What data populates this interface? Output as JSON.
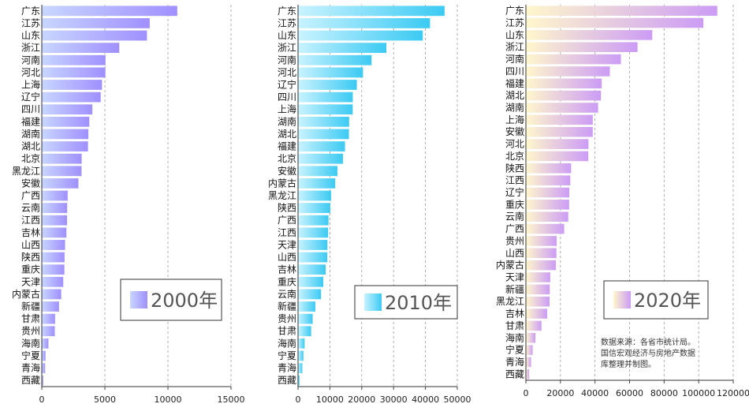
{
  "chart_data": [
    {
      "type": "bar",
      "orientation": "horizontal",
      "legend": "2000年",
      "legend_position": "bottom-right",
      "xlim": [
        0,
        15000
      ],
      "xticks": [
        "0",
        "5000",
        "10000",
        "15000"
      ],
      "grid": "vertical dashed",
      "colors": {
        "start": "#c8d6ff",
        "end": "#a090ff"
      },
      "categories": [
        "广东",
        "江苏",
        "山东",
        "浙江",
        "河南",
        "河北",
        "上海",
        "辽宁",
        "四川",
        "福建",
        "湖南",
        "湖北",
        "北京",
        "黑龙江",
        "安徽",
        "广西",
        "云南",
        "江西",
        "吉林",
        "山西",
        "陕西",
        "重庆",
        "天津",
        "内蒙古",
        "新疆",
        "甘肃",
        "贵州",
        "海南",
        "宁夏",
        "青海",
        "西藏"
      ],
      "values": [
        10741,
        8554,
        8337,
        6141,
        5053,
        5044,
        4771,
        4669,
        4010,
        3765,
        3692,
        3662,
        3162,
        3151,
        2902,
        2050,
        2011,
        2003,
        1951,
        1846,
        1804,
        1791,
        1702,
        1539,
        1364,
        1053,
        1030,
        526,
        295,
        264,
        117
      ]
    },
    {
      "type": "bar",
      "orientation": "horizontal",
      "legend": "2010年",
      "legend_position": "bottom-right",
      "xlim": [
        0,
        50000
      ],
      "xticks": [
        "0",
        "10000",
        "20000",
        "30000",
        "40000",
        "50000"
      ],
      "grid": "vertical dashed",
      "colors": {
        "start": "#c9f3ff",
        "end": "#3ccaf3"
      },
      "categories": [
        "广东",
        "江苏",
        "山东",
        "浙江",
        "河南",
        "河北",
        "辽宁",
        "四川",
        "上海",
        "湖南",
        "湖北",
        "福建",
        "北京",
        "安徽",
        "内蒙古",
        "黑龙江",
        "陕西",
        "广西",
        "江西",
        "天津",
        "山西",
        "吉林",
        "重庆",
        "云南",
        "新疆",
        "贵州",
        "甘肃",
        "海南",
        "宁夏",
        "青海",
        "西藏"
      ],
      "values": [
        46013,
        41425,
        39170,
        27722,
        23092,
        20394,
        18457,
        17185,
        17166,
        16038,
        15968,
        14737,
        14114,
        12359,
        11672,
        10369,
        10123,
        9570,
        9451,
        9224,
        9200,
        8668,
        7926,
        7224,
        5437,
        4602,
        4121,
        2065,
        1690,
        1350,
        507
      ]
    },
    {
      "type": "bar",
      "orientation": "horizontal",
      "legend": "2020年",
      "legend_position": "bottom-right",
      "xlim": [
        0,
        120000
      ],
      "xticks": [
        "0",
        "20000",
        "40000",
        "60000",
        "80000",
        "100000",
        "120000"
      ],
      "grid": "vertical dashed",
      "colors": {
        "start": "#fff7cc",
        "end": "#cc9cf5"
      },
      "annotation": [
        "数据来源：各省市统计局。",
        "国信宏观经济与房地产数据",
        "库整理并制图。"
      ],
      "categories": [
        "广东",
        "江苏",
        "山东",
        "浙江",
        "河南",
        "四川",
        "福建",
        "湖北",
        "湖南",
        "上海",
        "安徽",
        "河北",
        "北京",
        "陕西",
        "江西",
        "辽宁",
        "重庆",
        "云南",
        "广西",
        "贵州",
        "山西",
        "内蒙古",
        "天津",
        "新疆",
        "黑龙江",
        "吉林",
        "甘肃",
        "海南",
        "宁夏",
        "青海",
        "西藏"
      ],
      "values": [
        110761,
        102719,
        73129,
        64613,
        54997,
        48599,
        43904,
        43443,
        41782,
        38701,
        38681,
        36207,
        36103,
        26182,
        25692,
        25115,
        25003,
        24522,
        22157,
        17827,
        17652,
        17360,
        14084,
        13798,
        13699,
        12311,
        9017,
        5532,
        3921,
        3006,
        1903
      ]
    }
  ]
}
